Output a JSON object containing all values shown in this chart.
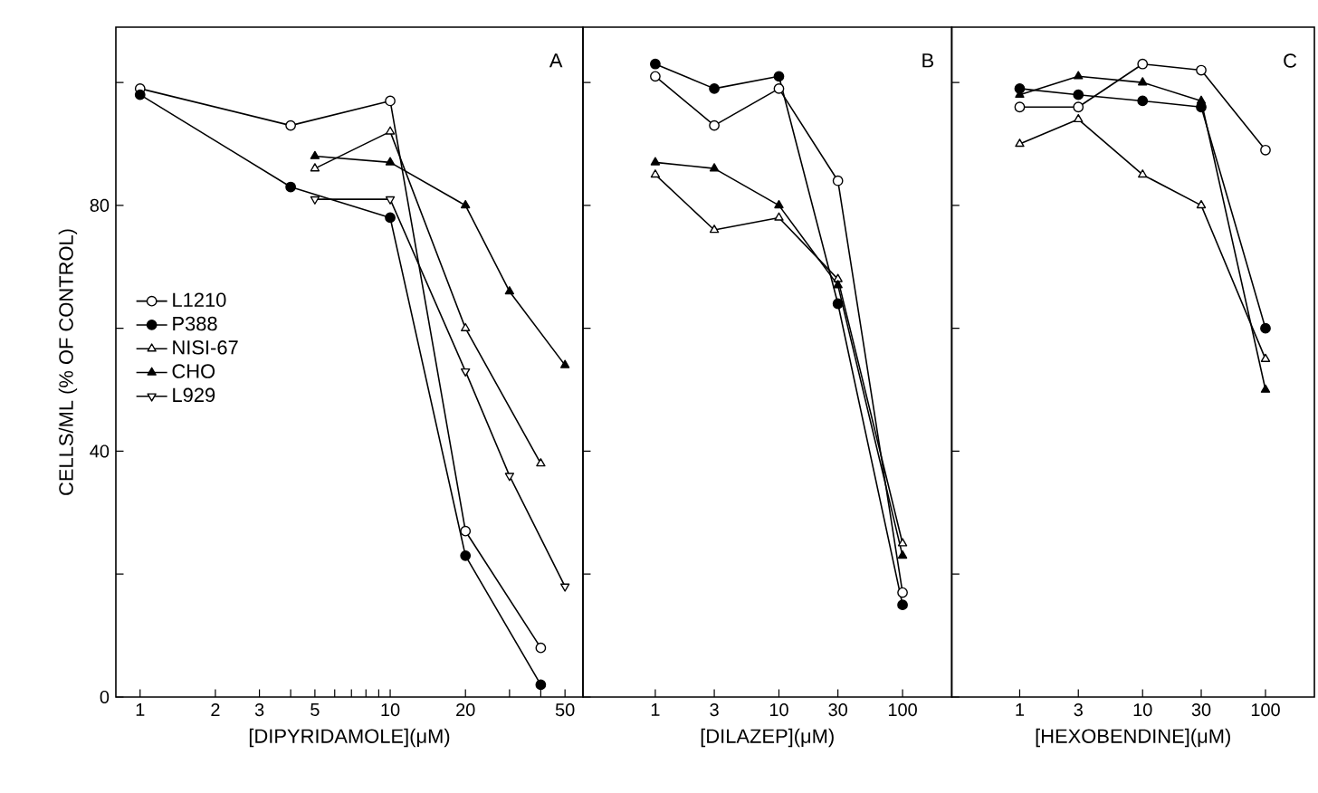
{
  "chart_data": [
    {
      "type": "line",
      "ylabel": "CELLS/ML  (% OF CONTROL)",
      "xlabel": "[DIPYRIDAMOLE](μM)",
      "log": "x",
      "legend": "left",
      "annotations": [
        "A"
      ],
      "xlim": [
        0.8,
        59
      ],
      "ylim": [
        0,
        109
      ],
      "xticks": [
        1,
        2,
        3,
        {
          "value": 4,
          "label": null
        },
        5,
        {
          "value": 6,
          "label": null
        },
        {
          "value": 7,
          "label": null
        },
        {
          "value": 8,
          "label": null
        },
        {
          "value": 9,
          "label": null
        },
        10,
        20,
        {
          "value": 30,
          "label": null
        },
        {
          "value": 40,
          "label": null
        },
        50
      ],
      "yticks": [
        0,
        {
          "value": 20,
          "label": null
        },
        40,
        {
          "value": 60,
          "label": null
        },
        80,
        {
          "value": 100,
          "label": null
        }
      ],
      "series": [
        {
          "name": "L1210",
          "marker": "circle",
          "color": "#ffffff",
          "x": [
            1,
            4,
            10,
            20,
            40
          ],
          "values": [
            99,
            93,
            97,
            27,
            8
          ]
        },
        {
          "name": "P388",
          "marker": "circle",
          "color": "#000000",
          "x": [
            1,
            4,
            10,
            20,
            40
          ],
          "values": [
            98,
            83,
            78,
            23,
            2
          ]
        },
        {
          "name": "NISI-67",
          "marker": "triangle",
          "color": "#ffffff",
          "x": [
            5,
            10,
            20,
            40
          ],
          "values": [
            86,
            92,
            60,
            38
          ]
        },
        {
          "name": "CHO",
          "marker": "triangle",
          "color": "#000000",
          "x": [
            5,
            10,
            20,
            30,
            50
          ],
          "values": [
            88,
            87,
            80,
            66,
            54
          ]
        },
        {
          "name": "L929",
          "marker": "triangle-down",
          "color": "#ffffff",
          "x": [
            5,
            10,
            20,
            30,
            50
          ],
          "values": [
            81,
            81,
            53,
            36,
            18
          ]
        }
      ]
    },
    {
      "type": "line",
      "xlabel": "[DILAZEP](μM)",
      "log": "x",
      "tick_labels": "x",
      "annotations": [
        "B"
      ],
      "xlim": [
        0.26,
        250
      ],
      "ylim": [
        0,
        109
      ],
      "xticks": [
        1,
        3,
        10,
        30,
        100
      ],
      "yticks": [
        {
          "value": 0,
          "label": null
        },
        {
          "value": 20,
          "label": null
        },
        {
          "value": 40,
          "label": null
        },
        {
          "value": 60,
          "label": null
        },
        {
          "value": 80,
          "label": null
        },
        {
          "value": 100,
          "label": null
        }
      ],
      "series": [
        {
          "marker": "circle",
          "color": "#ffffff",
          "x": [
            1,
            3,
            10,
            30,
            100
          ],
          "values": [
            101,
            93,
            99,
            84,
            17
          ]
        },
        {
          "marker": "circle",
          "color": "#000000",
          "x": [
            1,
            3,
            10,
            30,
            100
          ],
          "values": [
            103,
            99,
            101,
            64,
            15
          ]
        },
        {
          "marker": "triangle",
          "color": "#ffffff",
          "x": [
            1,
            3,
            10,
            30,
            100
          ],
          "values": [
            85,
            76,
            78,
            68,
            25
          ]
        },
        {
          "marker": "triangle",
          "color": "#000000",
          "x": [
            1,
            3,
            10,
            30,
            100
          ],
          "values": [
            87,
            86,
            80,
            67,
            23
          ]
        }
      ]
    },
    {
      "type": "line",
      "xlabel": "[HEXOBENDINE](μM)",
      "log": "x",
      "tick_labels": "x",
      "annotations": [
        "C"
      ],
      "xlim": [
        0.28,
        250
      ],
      "ylim": [
        0,
        109
      ],
      "xticks": [
        1,
        3,
        10,
        30,
        100
      ],
      "yticks": [
        {
          "value": 0,
          "label": null
        },
        {
          "value": 20,
          "label": null
        },
        {
          "value": 40,
          "label": null
        },
        {
          "value": 60,
          "label": null
        },
        {
          "value": 80,
          "label": null
        },
        {
          "value": 100,
          "label": null
        }
      ],
      "series": [
        {
          "marker": "circle",
          "color": "#ffffff",
          "x": [
            1,
            3,
            10,
            30,
            100
          ],
          "values": [
            96,
            96,
            103,
            102,
            89
          ]
        },
        {
          "marker": "circle",
          "color": "#000000",
          "x": [
            1,
            3,
            10,
            30,
            100
          ],
          "values": [
            99,
            98,
            97,
            96,
            60
          ]
        },
        {
          "marker": "triangle",
          "color": "#ffffff",
          "x": [
            1,
            3,
            10,
            30,
            100
          ],
          "values": [
            90,
            94,
            85,
            80,
            55
          ]
        },
        {
          "marker": "triangle",
          "color": "#000000",
          "x": [
            1,
            3,
            10,
            30,
            100
          ],
          "values": [
            98,
            101,
            100,
            97,
            50
          ]
        }
      ]
    }
  ]
}
